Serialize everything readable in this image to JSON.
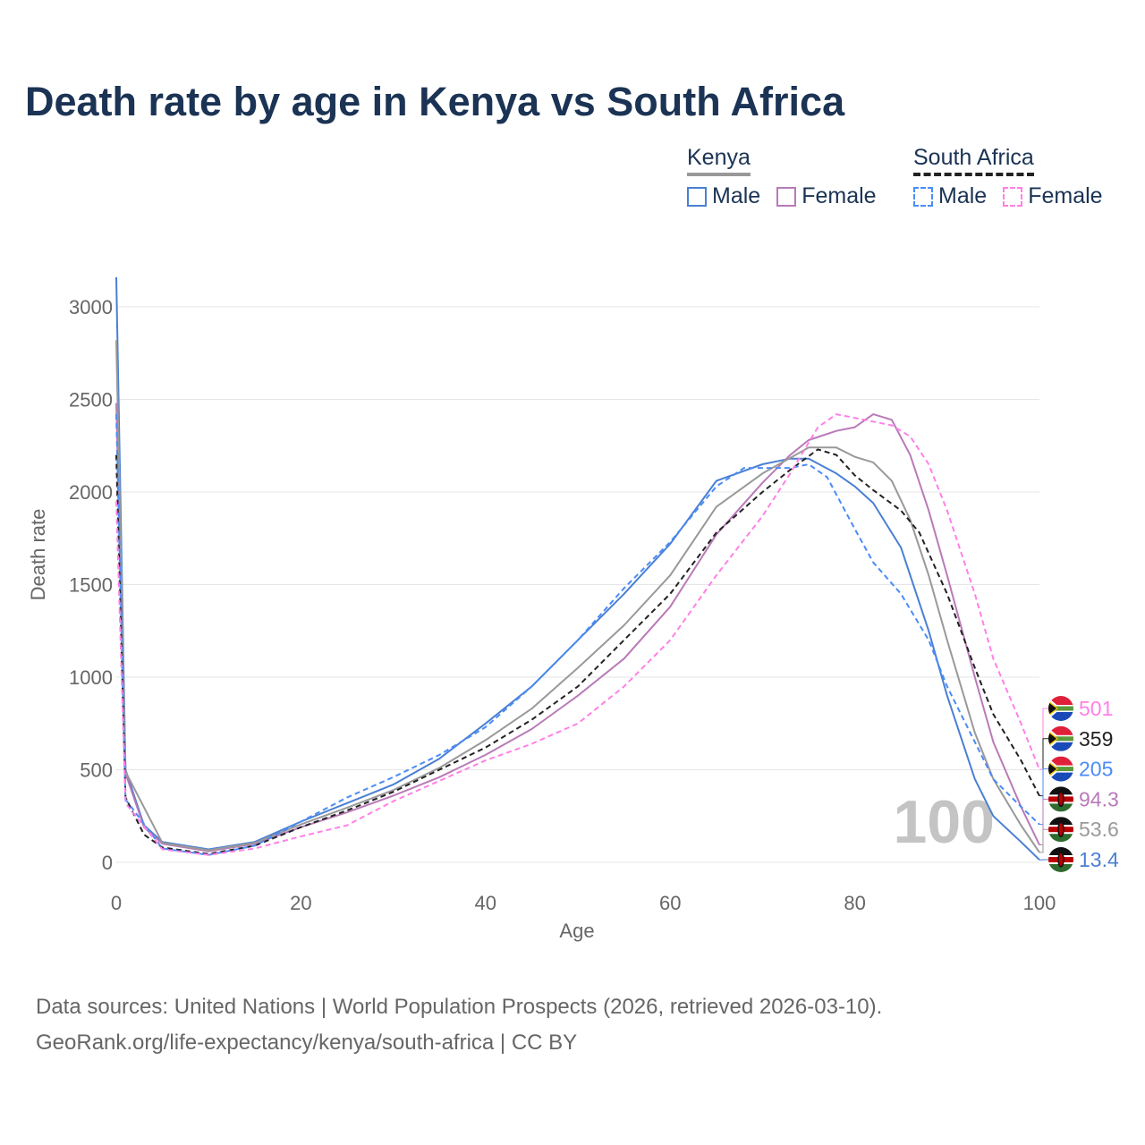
{
  "title": "Death rate by age in Kenya vs South Africa",
  "legend": {
    "groups": [
      {
        "name": "Kenya",
        "items": [
          "Male",
          "Female"
        ]
      },
      {
        "name": "South Africa",
        "items": [
          "Male",
          "Female"
        ]
      }
    ]
  },
  "watermark": "100",
  "footer": {
    "line1": "Data sources: United Nations | World Population Prospects (2026, retrieved 2026-03-10).",
    "line2": "GeoRank.org/life-expectancy/kenya/south-africa | CC BY"
  },
  "chart_data": {
    "type": "line",
    "title": "Death rate by age in Kenya vs South Africa",
    "xlabel": "Age",
    "ylabel": "Death rate",
    "xlim": [
      0,
      100
    ],
    "ylim": [
      0,
      3150
    ],
    "xticks": [
      0,
      20,
      40,
      60,
      80,
      100
    ],
    "yticks": [
      0,
      500,
      1000,
      1500,
      2000,
      2500,
      3000
    ],
    "grid": true,
    "legend_position": "top-right",
    "series": [
      {
        "name": "Kenya Male",
        "country": "Kenya",
        "color": "#4a7fd4",
        "dashed": false,
        "end_label": "13.4",
        "x": [
          0,
          1,
          3,
          5,
          10,
          15,
          20,
          25,
          30,
          35,
          40,
          45,
          50,
          55,
          60,
          65,
          70,
          73,
          75,
          78,
          80,
          82,
          85,
          88,
          90,
          93,
          95,
          98,
          100
        ],
        "y": [
          3160,
          500,
          200,
          110,
          70,
          110,
          220,
          320,
          420,
          560,
          750,
          950,
          1200,
          1450,
          1720,
          2060,
          2150,
          2180,
          2180,
          2100,
          2030,
          1940,
          1700,
          1250,
          900,
          450,
          250,
          110,
          13.4
        ]
      },
      {
        "name": "Kenya Female",
        "country": "Kenya",
        "color": "#b97ab8",
        "dashed": false,
        "end_label": "94.3",
        "x": [
          0,
          1,
          3,
          5,
          10,
          15,
          20,
          25,
          30,
          35,
          40,
          45,
          50,
          55,
          60,
          65,
          70,
          73,
          75,
          78,
          80,
          82,
          84,
          86,
          88,
          90,
          93,
          95,
          98,
          100
        ],
        "y": [
          2480,
          480,
          190,
          100,
          60,
          100,
          190,
          270,
          360,
          460,
          580,
          720,
          900,
          1100,
          1380,
          1770,
          2050,
          2200,
          2280,
          2330,
          2350,
          2420,
          2390,
          2200,
          1900,
          1550,
          1000,
          650,
          300,
          94.3
        ]
      },
      {
        "name": "Kenya",
        "country": "Kenya",
        "color": "#999999",
        "dashed": false,
        "end_label": "53.6",
        "x": [
          0,
          1,
          5,
          10,
          15,
          20,
          25,
          30,
          35,
          40,
          45,
          50,
          55,
          60,
          65,
          70,
          75,
          78,
          80,
          82,
          84,
          86,
          88,
          90,
          93,
          95,
          98,
          100
        ],
        "y": [
          2820,
          490,
          105,
          65,
          105,
          205,
          295,
          390,
          510,
          660,
          830,
          1050,
          1280,
          1550,
          1920,
          2100,
          2240,
          2240,
          2190,
          2160,
          2060,
          1850,
          1550,
          1200,
          700,
          450,
          200,
          53.6
        ]
      },
      {
        "name": "South Africa",
        "country": "South Africa",
        "color": "#222222",
        "dashed": true,
        "end_label": "359",
        "x": [
          0,
          1,
          3,
          5,
          10,
          15,
          20,
          25,
          30,
          35,
          40,
          45,
          50,
          55,
          60,
          65,
          70,
          73,
          76,
          78,
          80,
          82,
          85,
          87,
          90,
          93,
          95,
          98,
          100
        ],
        "y": [
          2200,
          350,
          150,
          80,
          45,
          90,
          190,
          280,
          380,
          500,
          620,
          770,
          950,
          1200,
          1450,
          1780,
          2000,
          2120,
          2230,
          2200,
          2090,
          2010,
          1900,
          1780,
          1450,
          1050,
          800,
          550,
          359
        ]
      },
      {
        "name": "South Africa Male",
        "country": "South Africa",
        "color": "#4a8cf7",
        "dashed": true,
        "end_label": "205",
        "x": [
          0,
          1,
          5,
          10,
          15,
          20,
          25,
          30,
          35,
          40,
          45,
          50,
          55,
          60,
          65,
          68,
          70,
          73,
          75,
          77,
          80,
          82,
          85,
          88,
          90,
          93,
          95,
          98,
          100
        ],
        "y": [
          2420,
          340,
          75,
          40,
          90,
          220,
          350,
          460,
          580,
          730,
          950,
          1200,
          1480,
          1730,
          2030,
          2130,
          2130,
          2130,
          2150,
          2080,
          1800,
          1620,
          1450,
          1200,
          950,
          650,
          450,
          300,
          205
        ]
      },
      {
        "name": "South Africa Female",
        "country": "South Africa",
        "color": "#ff80e6",
        "dashed": true,
        "end_label": "501",
        "x": [
          0,
          1,
          5,
          10,
          15,
          20,
          25,
          30,
          35,
          40,
          45,
          50,
          55,
          60,
          65,
          70,
          73,
          76,
          78,
          80,
          82,
          84,
          86,
          88,
          90,
          93,
          95,
          98,
          100
        ],
        "y": [
          1950,
          320,
          70,
          40,
          75,
          140,
          200,
          330,
          440,
          550,
          640,
          750,
          950,
          1200,
          1550,
          1870,
          2100,
          2350,
          2420,
          2400,
          2380,
          2360,
          2300,
          2150,
          1900,
          1450,
          1100,
          750,
          501
        ]
      }
    ]
  }
}
